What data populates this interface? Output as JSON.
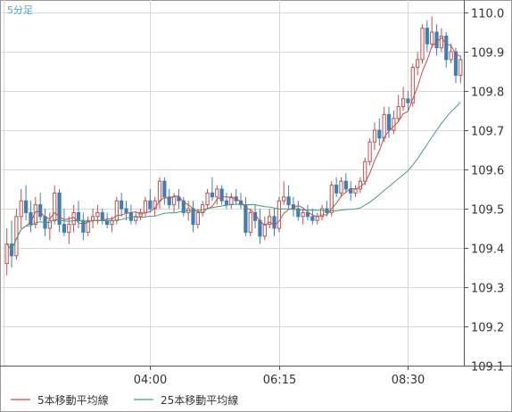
{
  "chart_data": {
    "type": "candlestick",
    "title": "",
    "period_label": "5分足",
    "xlabel": "",
    "ylabel": "",
    "ylim": [
      109.1,
      110.0
    ],
    "y_ticks": [
      110.0,
      109.9,
      109.8,
      109.7,
      109.6,
      109.5,
      109.4,
      109.3,
      109.2,
      109.1
    ],
    "x_ticks": [
      {
        "index": 30,
        "label": "04:00"
      },
      {
        "index": 57,
        "label": "06:15"
      },
      {
        "index": 84,
        "label": "08:30"
      }
    ],
    "grid": true,
    "legend_position": "bottom-left",
    "legend": [
      {
        "label": "5本移動平均線",
        "color": "#c0504d"
      },
      {
        "label": "25本移動平均線",
        "color": "#3aa07a"
      }
    ],
    "colors": {
      "up": "#c0504d",
      "down": "#3f7fb8",
      "grid": "#d9d9d9",
      "axis": "#555555",
      "period_label": "#4aa8d8"
    },
    "ohlc": [
      [
        109.36,
        109.45,
        109.33,
        109.41
      ],
      [
        109.41,
        109.47,
        109.35,
        109.38
      ],
      [
        109.38,
        109.5,
        109.37,
        109.48
      ],
      [
        109.48,
        109.55,
        109.45,
        109.52
      ],
      [
        109.52,
        109.56,
        109.47,
        109.49
      ],
      [
        109.49,
        109.52,
        109.44,
        109.46
      ],
      [
        109.46,
        109.53,
        109.45,
        109.51
      ],
      [
        109.51,
        109.54,
        109.47,
        109.48
      ],
      [
        109.48,
        109.5,
        109.43,
        109.45
      ],
      [
        109.45,
        109.49,
        109.42,
        109.47
      ],
      [
        109.47,
        109.56,
        109.46,
        109.54
      ],
      [
        109.54,
        109.55,
        109.44,
        109.46
      ],
      [
        109.46,
        109.5,
        109.43,
        109.44
      ],
      [
        109.44,
        109.48,
        109.41,
        109.46
      ],
      [
        109.46,
        109.51,
        109.44,
        109.49
      ],
      [
        109.49,
        109.52,
        109.45,
        109.47
      ],
      [
        109.47,
        109.49,
        109.42,
        109.44
      ],
      [
        109.44,
        109.48,
        109.43,
        109.47
      ],
      [
        109.47,
        109.5,
        109.45,
        109.48
      ],
      [
        109.48,
        109.51,
        109.46,
        109.49
      ],
      [
        109.49,
        109.5,
        109.46,
        109.47
      ],
      [
        109.47,
        109.49,
        109.45,
        109.46
      ],
      [
        109.46,
        109.48,
        109.44,
        109.47
      ],
      [
        109.47,
        109.53,
        109.46,
        109.52
      ],
      [
        109.52,
        109.54,
        109.48,
        109.5
      ],
      [
        109.5,
        109.52,
        109.47,
        109.49
      ],
      [
        109.49,
        109.51,
        109.46,
        109.47
      ],
      [
        109.47,
        109.49,
        109.46,
        109.48
      ],
      [
        109.48,
        109.5,
        109.47,
        109.49
      ],
      [
        109.49,
        109.53,
        109.48,
        109.52
      ],
      [
        109.52,
        109.55,
        109.49,
        109.5
      ],
      [
        109.5,
        109.53,
        109.48,
        109.52
      ],
      [
        109.52,
        109.58,
        109.5,
        109.57
      ],
      [
        109.57,
        109.58,
        109.51,
        109.53
      ],
      [
        109.53,
        109.55,
        109.5,
        109.51
      ],
      [
        109.51,
        109.54,
        109.49,
        109.53
      ],
      [
        109.53,
        109.55,
        109.5,
        109.52
      ],
      [
        109.52,
        109.53,
        109.48,
        109.49
      ],
      [
        109.49,
        109.52,
        109.47,
        109.5
      ],
      [
        109.5,
        109.52,
        109.44,
        109.46
      ],
      [
        109.46,
        109.5,
        109.45,
        109.49
      ],
      [
        109.49,
        109.52,
        109.48,
        109.51
      ],
      [
        109.51,
        109.55,
        109.5,
        109.54
      ],
      [
        109.54,
        109.58,
        109.52,
        109.53
      ],
      [
        109.53,
        109.56,
        109.51,
        109.55
      ],
      [
        109.55,
        109.56,
        109.51,
        109.52
      ],
      [
        109.52,
        109.54,
        109.5,
        109.51
      ],
      [
        109.51,
        109.54,
        109.5,
        109.53
      ],
      [
        109.53,
        109.55,
        109.51,
        109.52
      ],
      [
        109.52,
        109.54,
        109.5,
        109.51
      ],
      [
        109.51,
        109.53,
        109.43,
        109.44
      ],
      [
        109.44,
        109.5,
        109.43,
        109.49
      ],
      [
        109.49,
        109.51,
        109.45,
        109.47
      ],
      [
        109.47,
        109.5,
        109.41,
        109.43
      ],
      [
        109.43,
        109.48,
        109.42,
        109.46
      ],
      [
        109.46,
        109.5,
        109.45,
        109.48
      ],
      [
        109.48,
        109.5,
        109.43,
        109.45
      ],
      [
        109.45,
        109.53,
        109.44,
        109.52
      ],
      [
        109.52,
        109.57,
        109.51,
        109.53
      ],
      [
        109.53,
        109.56,
        109.5,
        109.51
      ],
      [
        109.51,
        109.53,
        109.48,
        109.5
      ],
      [
        109.5,
        109.52,
        109.47,
        109.48
      ],
      [
        109.48,
        109.5,
        109.46,
        109.49
      ],
      [
        109.49,
        109.51,
        109.47,
        109.48
      ],
      [
        109.48,
        109.5,
        109.46,
        109.47
      ],
      [
        109.47,
        109.49,
        109.46,
        109.48
      ],
      [
        109.48,
        109.51,
        109.47,
        109.5
      ],
      [
        109.5,
        109.52,
        109.48,
        109.49
      ],
      [
        109.49,
        109.57,
        109.48,
        109.56
      ],
      [
        109.56,
        109.58,
        109.53,
        109.54
      ],
      [
        109.54,
        109.58,
        109.53,
        109.57
      ],
      [
        109.57,
        109.59,
        109.54,
        109.55
      ],
      [
        109.55,
        109.57,
        109.52,
        109.54
      ],
      [
        109.54,
        109.56,
        109.53,
        109.55
      ],
      [
        109.55,
        109.58,
        109.54,
        109.57
      ],
      [
        109.57,
        109.63,
        109.56,
        109.62
      ],
      [
        109.62,
        109.68,
        109.61,
        109.67
      ],
      [
        109.67,
        109.72,
        109.65,
        109.7
      ],
      [
        109.7,
        109.73,
        109.66,
        109.68
      ],
      [
        109.68,
        109.76,
        109.67,
        109.74
      ],
      [
        109.74,
        109.76,
        109.68,
        109.7
      ],
      [
        109.7,
        109.75,
        109.69,
        109.73
      ],
      [
        109.73,
        109.79,
        109.72,
        109.76
      ],
      [
        109.76,
        109.81,
        109.75,
        109.78
      ],
      [
        109.78,
        109.8,
        109.75,
        109.77
      ],
      [
        109.77,
        109.87,
        109.76,
        109.86
      ],
      [
        109.86,
        109.9,
        109.84,
        109.88
      ],
      [
        109.88,
        109.97,
        109.87,
        109.96
      ],
      [
        109.96,
        109.98,
        109.9,
        109.92
      ],
      [
        109.92,
        109.99,
        109.91,
        109.95
      ],
      [
        109.95,
        109.97,
        109.89,
        109.91
      ],
      [
        109.91,
        109.96,
        109.9,
        109.94
      ],
      [
        109.94,
        109.95,
        109.86,
        109.88
      ],
      [
        109.88,
        109.92,
        109.87,
        109.9
      ],
      [
        109.9,
        109.91,
        109.82,
        109.84
      ],
      [
        109.84,
        109.89,
        109.82,
        109.88
      ]
    ]
  }
}
